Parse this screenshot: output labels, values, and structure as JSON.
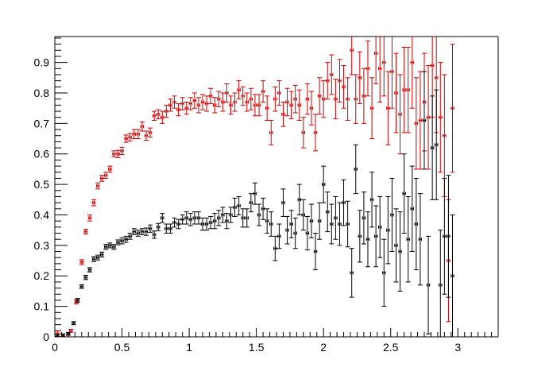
{
  "chart_data": {
    "type": "scatter",
    "title": "",
    "xlabel": "",
    "ylabel": "",
    "xlim": [
      0,
      3.3
    ],
    "ylim": [
      0,
      0.985
    ],
    "grid": false,
    "xticks": [
      0,
      0.5,
      1,
      1.5,
      2,
      2.5,
      3
    ],
    "xtick_labels": [
      "0",
      "0.5",
      "1",
      "1.5",
      "2",
      "2.5",
      "3"
    ],
    "yticks": [
      0,
      0.1,
      0.2,
      0.3,
      0.4,
      0.5,
      0.6,
      0.7,
      0.8,
      0.9
    ],
    "ytick_labels": [
      "0",
      "0.1",
      "0.2",
      "0.3",
      "0.4",
      "0.5",
      "0.6",
      "0.7",
      "0.8",
      "0.9"
    ],
    "series": [
      {
        "color": "#cc0000",
        "xerr": 0.01,
        "points": [
          [
            0.02,
            0.01,
            0.01
          ],
          [
            0.06,
            0.005,
            0.005
          ],
          [
            0.1,
            0.01,
            0.005
          ],
          [
            0.12,
            0.02,
            0.005
          ],
          [
            0.16,
            0.115,
            0.007
          ],
          [
            0.2,
            0.245,
            0.008
          ],
          [
            0.23,
            0.345,
            0.008
          ],
          [
            0.26,
            0.39,
            0.01
          ],
          [
            0.29,
            0.44,
            0.01
          ],
          [
            0.32,
            0.495,
            0.01
          ],
          [
            0.35,
            0.52,
            0.01
          ],
          [
            0.38,
            0.53,
            0.01
          ],
          [
            0.41,
            0.55,
            0.01
          ],
          [
            0.44,
            0.6,
            0.01
          ],
          [
            0.47,
            0.6,
            0.012
          ],
          [
            0.5,
            0.61,
            0.012
          ],
          [
            0.53,
            0.65,
            0.012
          ],
          [
            0.56,
            0.655,
            0.012
          ],
          [
            0.59,
            0.665,
            0.015
          ],
          [
            0.62,
            0.665,
            0.015
          ],
          [
            0.65,
            0.69,
            0.015
          ],
          [
            0.68,
            0.66,
            0.015
          ],
          [
            0.71,
            0.67,
            0.015
          ],
          [
            0.74,
            0.725,
            0.015
          ],
          [
            0.77,
            0.73,
            0.015
          ],
          [
            0.8,
            0.72,
            0.02
          ],
          [
            0.83,
            0.74,
            0.02
          ],
          [
            0.86,
            0.76,
            0.02
          ],
          [
            0.89,
            0.77,
            0.02
          ],
          [
            0.92,
            0.745,
            0.02
          ],
          [
            0.95,
            0.765,
            0.02
          ],
          [
            0.98,
            0.75,
            0.02
          ],
          [
            1.01,
            0.765,
            0.02
          ],
          [
            1.04,
            0.775,
            0.025
          ],
          [
            1.07,
            0.76,
            0.025
          ],
          [
            1.1,
            0.77,
            0.025
          ],
          [
            1.13,
            0.765,
            0.025
          ],
          [
            1.16,
            0.79,
            0.025
          ],
          [
            1.19,
            0.76,
            0.025
          ],
          [
            1.22,
            0.78,
            0.025
          ],
          [
            1.25,
            0.77,
            0.03
          ],
          [
            1.28,
            0.8,
            0.03
          ],
          [
            1.31,
            0.76,
            0.03
          ],
          [
            1.34,
            0.77,
            0.03
          ],
          [
            1.37,
            0.81,
            0.03
          ],
          [
            1.4,
            0.79,
            0.03
          ],
          [
            1.43,
            0.77,
            0.03
          ],
          [
            1.46,
            0.78,
            0.035
          ],
          [
            1.49,
            0.76,
            0.035
          ],
          [
            1.52,
            0.76,
            0.035
          ],
          [
            1.55,
            0.805,
            0.035
          ],
          [
            1.58,
            0.75,
            0.04
          ],
          [
            1.61,
            0.67,
            0.04
          ],
          [
            1.64,
            0.78,
            0.04
          ],
          [
            1.67,
            0.8,
            0.04
          ],
          [
            1.7,
            0.73,
            0.04
          ],
          [
            1.73,
            0.77,
            0.045
          ],
          [
            1.76,
            0.76,
            0.045
          ],
          [
            1.79,
            0.78,
            0.045
          ],
          [
            1.82,
            0.76,
            0.05
          ],
          [
            1.85,
            0.67,
            0.05
          ],
          [
            1.88,
            0.78,
            0.05
          ],
          [
            1.91,
            0.75,
            0.055
          ],
          [
            1.94,
            0.67,
            0.06
          ],
          [
            1.97,
            0.79,
            0.06
          ],
          [
            2,
            0.78,
            0.06
          ],
          [
            2.03,
            0.84,
            0.06
          ],
          [
            2.06,
            0.86,
            0.065
          ],
          [
            2.09,
            0.78,
            0.065
          ],
          [
            2.12,
            0.84,
            0.07
          ],
          [
            2.15,
            0.82,
            0.07
          ],
          [
            2.18,
            0.78,
            0.07
          ],
          [
            2.21,
            0.94,
            0.08
          ],
          [
            2.24,
            0.78,
            0.08
          ],
          [
            2.27,
            0.85,
            0.085
          ],
          [
            2.3,
            0.79,
            0.09
          ],
          [
            2.33,
            0.88,
            0.09
          ],
          [
            2.36,
            0.75,
            0.1
          ],
          [
            2.39,
            0.93,
            0.1
          ],
          [
            2.42,
            0.88,
            0.11
          ],
          [
            2.45,
            0.9,
            0.11
          ],
          [
            2.48,
            0.75,
            0.12
          ],
          [
            2.51,
            0.87,
            0.12
          ],
          [
            2.54,
            0.8,
            0.13
          ],
          [
            2.57,
            0.73,
            0.13
          ],
          [
            2.6,
            0.81,
            0.14
          ],
          [
            2.63,
            0.81,
            0.14
          ],
          [
            2.66,
            0.9,
            0.15
          ],
          [
            2.69,
            0.7,
            0.15
          ],
          [
            2.72,
            0.71,
            0.16
          ],
          [
            2.75,
            0.77,
            0.16
          ],
          [
            2.78,
            0.72,
            0.17
          ],
          [
            2.81,
            0.89,
            0.17
          ],
          [
            2.84,
            0.85,
            0.18
          ],
          [
            2.87,
            0.72,
            0.18
          ],
          [
            2.9,
            0.66,
            0.2
          ],
          [
            2.93,
            0.25,
            0.2
          ],
          [
            2.96,
            0.75,
            0.21
          ]
        ]
      },
      {
        "color": "#000000",
        "xerr": 0.01,
        "points": [
          [
            0.02,
            0.005,
            0.004
          ],
          [
            0.06,
            0.005,
            0.004
          ],
          [
            0.1,
            0.01,
            0.004
          ],
          [
            0.14,
            0.045,
            0.005
          ],
          [
            0.17,
            0.12,
            0.006
          ],
          [
            0.2,
            0.165,
            0.006
          ],
          [
            0.23,
            0.195,
            0.007
          ],
          [
            0.26,
            0.22,
            0.007
          ],
          [
            0.29,
            0.255,
            0.008
          ],
          [
            0.32,
            0.26,
            0.008
          ],
          [
            0.35,
            0.27,
            0.008
          ],
          [
            0.38,
            0.295,
            0.008
          ],
          [
            0.41,
            0.3,
            0.008
          ],
          [
            0.44,
            0.295,
            0.008
          ],
          [
            0.47,
            0.31,
            0.008
          ],
          [
            0.5,
            0.315,
            0.01
          ],
          [
            0.53,
            0.32,
            0.01
          ],
          [
            0.56,
            0.33,
            0.01
          ],
          [
            0.59,
            0.345,
            0.01
          ],
          [
            0.62,
            0.34,
            0.01
          ],
          [
            0.65,
            0.345,
            0.01
          ],
          [
            0.68,
            0.345,
            0.012
          ],
          [
            0.71,
            0.355,
            0.012
          ],
          [
            0.74,
            0.335,
            0.012
          ],
          [
            0.77,
            0.36,
            0.012
          ],
          [
            0.8,
            0.39,
            0.015
          ],
          [
            0.83,
            0.355,
            0.015
          ],
          [
            0.86,
            0.355,
            0.015
          ],
          [
            0.89,
            0.375,
            0.015
          ],
          [
            0.92,
            0.37,
            0.015
          ],
          [
            0.95,
            0.385,
            0.015
          ],
          [
            0.98,
            0.39,
            0.02
          ],
          [
            1.01,
            0.385,
            0.02
          ],
          [
            1.04,
            0.39,
            0.02
          ],
          [
            1.07,
            0.39,
            0.02
          ],
          [
            1.1,
            0.37,
            0.02
          ],
          [
            1.13,
            0.37,
            0.02
          ],
          [
            1.16,
            0.375,
            0.02
          ],
          [
            1.19,
            0.38,
            0.025
          ],
          [
            1.22,
            0.39,
            0.025
          ],
          [
            1.25,
            0.4,
            0.025
          ],
          [
            1.28,
            0.38,
            0.025
          ],
          [
            1.31,
            0.4,
            0.025
          ],
          [
            1.34,
            0.425,
            0.03
          ],
          [
            1.37,
            0.43,
            0.03
          ],
          [
            1.4,
            0.39,
            0.03
          ],
          [
            1.43,
            0.39,
            0.03
          ],
          [
            1.46,
            0.44,
            0.03
          ],
          [
            1.49,
            0.47,
            0.035
          ],
          [
            1.52,
            0.4,
            0.035
          ],
          [
            1.55,
            0.42,
            0.035
          ],
          [
            1.58,
            0.38,
            0.04
          ],
          [
            1.61,
            0.37,
            0.04
          ],
          [
            1.64,
            0.29,
            0.04
          ],
          [
            1.67,
            0.33,
            0.04
          ],
          [
            1.7,
            0.44,
            0.045
          ],
          [
            1.73,
            0.35,
            0.045
          ],
          [
            1.76,
            0.37,
            0.045
          ],
          [
            1.79,
            0.34,
            0.05
          ],
          [
            1.82,
            0.45,
            0.05
          ],
          [
            1.85,
            0.4,
            0.05
          ],
          [
            1.88,
            0.34,
            0.055
          ],
          [
            1.91,
            0.38,
            0.055
          ],
          [
            1.94,
            0.28,
            0.06
          ],
          [
            1.97,
            0.38,
            0.06
          ],
          [
            2,
            0.5,
            0.06
          ],
          [
            2.03,
            0.41,
            0.065
          ],
          [
            2.06,
            0.37,
            0.065
          ],
          [
            2.09,
            0.39,
            0.07
          ],
          [
            2.12,
            0.37,
            0.07
          ],
          [
            2.15,
            0.44,
            0.075
          ],
          [
            2.18,
            0.37,
            0.075
          ],
          [
            2.21,
            0.21,
            0.08
          ],
          [
            2.24,
            0.55,
            0.08
          ],
          [
            2.27,
            0.33,
            0.085
          ],
          [
            2.3,
            0.39,
            0.085
          ],
          [
            2.33,
            0.32,
            0.09
          ],
          [
            2.36,
            0.45,
            0.09
          ],
          [
            2.39,
            0.33,
            0.1
          ],
          [
            2.42,
            0.36,
            0.1
          ],
          [
            2.45,
            0.21,
            0.11
          ],
          [
            2.48,
            0.35,
            0.11
          ],
          [
            2.51,
            0.4,
            0.12
          ],
          [
            2.54,
            0.3,
            0.12
          ],
          [
            2.57,
            0.28,
            0.13
          ],
          [
            2.6,
            0.47,
            0.13
          ],
          [
            2.63,
            0.32,
            0.14
          ],
          [
            2.66,
            0.42,
            0.14
          ],
          [
            2.69,
            0.37,
            0.15
          ],
          [
            2.72,
            0.32,
            0.15
          ],
          [
            2.75,
            0.71,
            0.16
          ],
          [
            2.78,
            0.17,
            0.16
          ],
          [
            2.81,
            0.62,
            0.17
          ],
          [
            2.84,
            0.63,
            0.18
          ],
          [
            2.87,
            0.17,
            0.18
          ],
          [
            2.9,
            0.33,
            0.19
          ],
          [
            2.93,
            0.33,
            0.2
          ],
          [
            2.96,
            0.2,
            0.2
          ]
        ]
      }
    ]
  }
}
